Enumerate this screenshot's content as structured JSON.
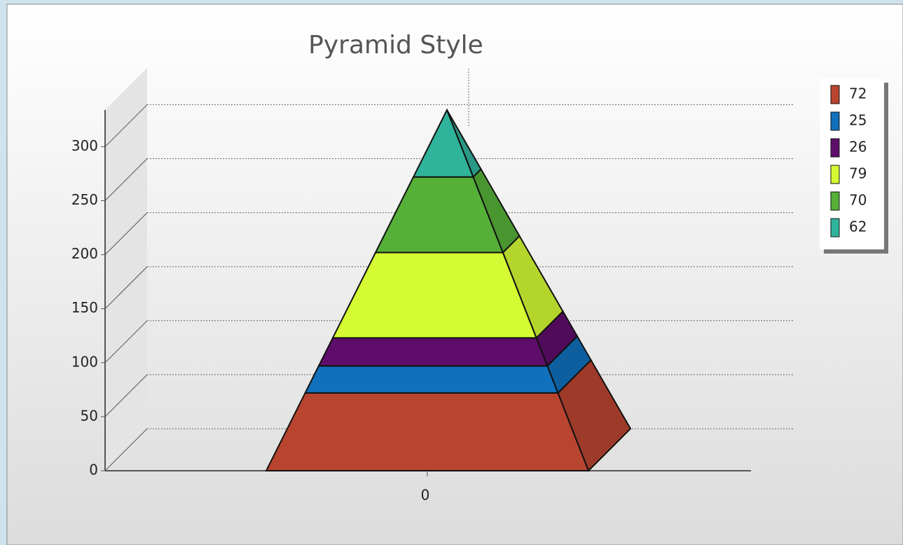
{
  "chart_data": {
    "type": "pyramid",
    "title": "Pyramid Style",
    "categories": [
      "0"
    ],
    "series": [
      {
        "name": "72",
        "color": "#b94430",
        "values": [
          72
        ]
      },
      {
        "name": "25",
        "color": "#1170bb",
        "values": [
          25
        ]
      },
      {
        "name": "26",
        "color": "#5e0e6a",
        "values": [
          26
        ]
      },
      {
        "name": "79",
        "color": "#d4fb34",
        "values": [
          79
        ]
      },
      {
        "name": "70",
        "color": "#56b038",
        "values": [
          70
        ]
      },
      {
        "name": "62",
        "color": "#30b39b",
        "values": [
          62
        ]
      }
    ],
    "ylim": [
      0,
      334
    ],
    "yticks": [
      0,
      50,
      100,
      150,
      200,
      250,
      300
    ],
    "grid": true,
    "legend": "right"
  }
}
